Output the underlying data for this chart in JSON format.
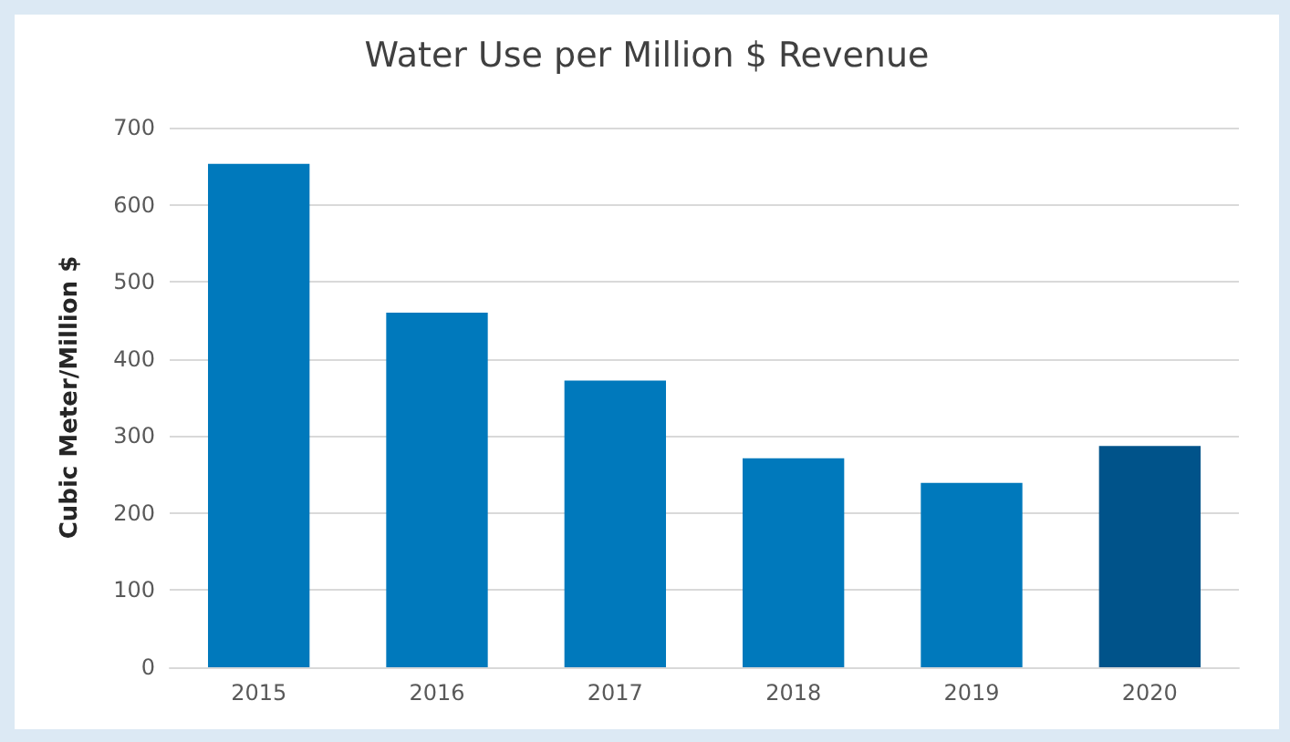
{
  "chart_data": {
    "type": "bar",
    "title": "Water Use per Million $ Revenue",
    "ylabel": "Cubic Meter/Million $",
    "categories": [
      "2015",
      "2016",
      "2017",
      "2018",
      "2019",
      "2020"
    ],
    "values": [
      653,
      460,
      372,
      271,
      239,
      287
    ],
    "colors": [
      "#0079bc",
      "#0079bc",
      "#0079bc",
      "#0079bc",
      "#0079bc",
      "#00538a"
    ],
    "ylim": [
      0,
      700
    ],
    "yticks": [
      0,
      100,
      200,
      300,
      400,
      500,
      600,
      700
    ],
    "grid": "y"
  }
}
